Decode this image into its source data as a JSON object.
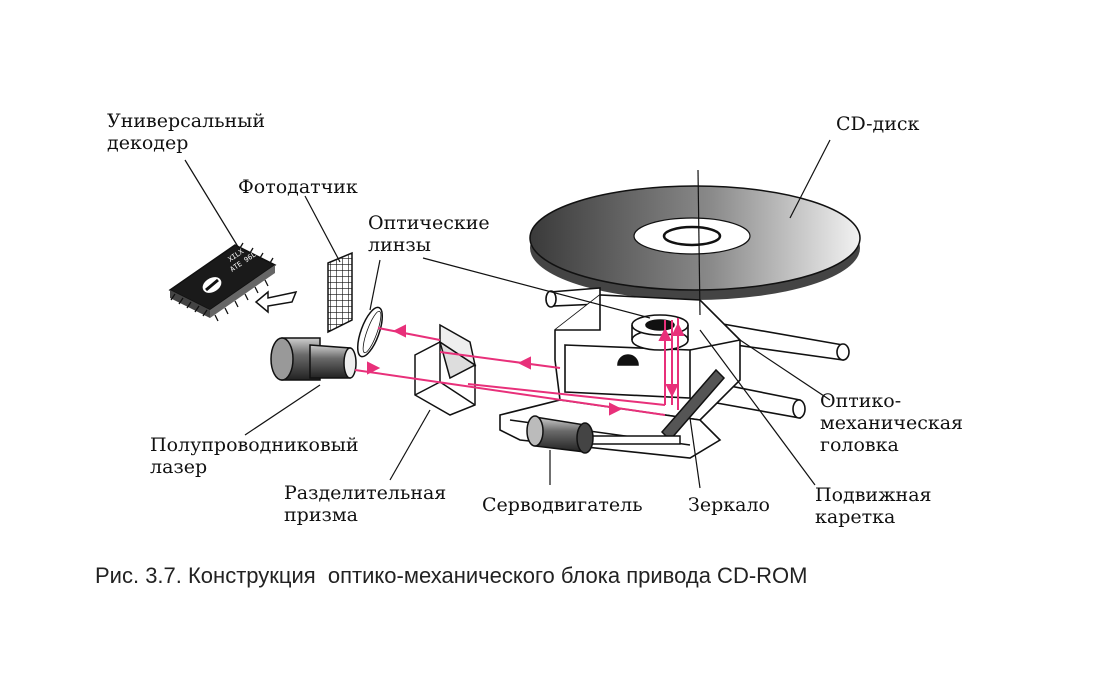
{
  "labels": {
    "decoder": [
      "Универсальный",
      "декодер"
    ],
    "photosensor": "Фотодатчик",
    "lenses": [
      "Оптические",
      "линзы"
    ],
    "cd_disk": "CD-диск",
    "laser": [
      "Полупроводниковый",
      "лазер"
    ],
    "prism": [
      "Разделительная",
      "призма"
    ],
    "servo": "Серводвигатель",
    "mirror": "Зеркало",
    "carriage": [
      "Подвижная",
      "каретка"
    ],
    "head": [
      "Оптико-",
      "механическая",
      "головка"
    ]
  },
  "chip_text": [
    "XILX  16 JUI 00",
    "ATE 96L 61"
  ],
  "caption": "Рис. 3.7. Конструкция  оптико-механического блока привода CD-ROM",
  "colors": {
    "beam": "#e8307a",
    "ink": "#111111"
  }
}
